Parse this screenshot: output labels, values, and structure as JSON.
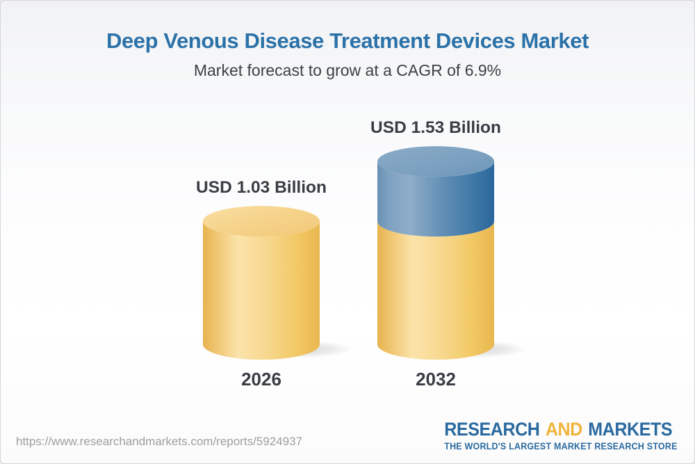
{
  "header": {
    "title": "Deep Venous Disease Treatment Devices Market",
    "subtitle": "Market forecast to grow at a CAGR of 6.9%"
  },
  "chart_data": {
    "type": "bar",
    "subtype": "3d-cylinder",
    "title": "Deep Venous Disease Treatment Devices Market",
    "subtitle": "Market forecast to grow at a CAGR of 6.9%",
    "cagr_percent": 6.9,
    "unit": "USD Billion",
    "categories": [
      "2026",
      "2032"
    ],
    "values": [
      1.03,
      1.53
    ],
    "legend": "none",
    "axes": "none",
    "bars": [
      {
        "category": "2026",
        "label": "USD 1.03 Billion",
        "segments": [
          {
            "value": 1.03,
            "color_key": "gold"
          }
        ]
      },
      {
        "category": "2032",
        "label": "USD 1.53 Billion",
        "segments": [
          {
            "value": 1.03,
            "color_key": "gold"
          },
          {
            "value": 0.5,
            "color_key": "blue"
          }
        ]
      }
    ],
    "colors": {
      "gold": "#f0c45f",
      "blue": "#4377a7"
    }
  },
  "footer": {
    "url": "https://www.researchandmarkets.com/reports/5924937",
    "logo": {
      "word1": "RESEARCH",
      "word2": "AND",
      "word3": "MARKETS",
      "tagline": "THE WORLD'S LARGEST MARKET RESEARCH STORE"
    }
  },
  "colors": {
    "title_blue": "#2b72a9",
    "text_dark": "#393d43",
    "url_gray": "#9d9ea0",
    "logo_blue": "#2a6aa0",
    "logo_gold": "#f0b43c"
  }
}
